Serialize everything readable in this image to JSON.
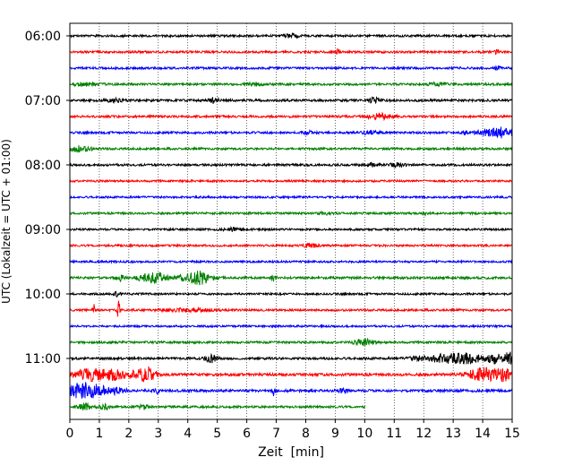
{
  "chart_data": {
    "type": "line",
    "title": "",
    "xlabel": "Zeit  [min]",
    "ylabel": "UTC (Lokalzeit = UTC + 01:00)",
    "xlim": [
      0,
      15
    ],
    "x_ticks": [
      0,
      1,
      2,
      3,
      4,
      5,
      6,
      7,
      8,
      9,
      10,
      11,
      12,
      13,
      14,
      15
    ],
    "y_ticks": [
      "06:00",
      "07:00",
      "08:00",
      "09:00",
      "10:00",
      "11:00"
    ],
    "trace_interval_min": 15,
    "first_trace": "06:00",
    "grid_x": true,
    "grid_style": "dotted",
    "color_cycle": [
      "#000000",
      "#ff0000",
      "#0000ff",
      "#008000"
    ],
    "traces": [
      {
        "start": "06:00",
        "color": "#000000",
        "amp": 1.2,
        "end": 15,
        "events": [
          [
            7.5,
            1.5,
            0.3
          ]
        ]
      },
      {
        "start": "06:15",
        "color": "#ff0000",
        "amp": 1.2,
        "end": 15,
        "events": [
          [
            9.1,
            3.5,
            0.05
          ],
          [
            14.5,
            2,
            0.1
          ]
        ]
      },
      {
        "start": "06:30",
        "color": "#0000ff",
        "amp": 1.2,
        "end": 15,
        "events": [
          [
            14.5,
            2,
            0.1
          ]
        ]
      },
      {
        "start": "06:45",
        "color": "#008000",
        "amp": 1.2,
        "end": 15,
        "events": [
          [
            0.5,
            1.8,
            0.4
          ],
          [
            6.3,
            1.5,
            0.3
          ],
          [
            12.5,
            2,
            0.3
          ]
        ]
      },
      {
        "start": "07:00",
        "color": "#000000",
        "amp": 1.3,
        "end": 15,
        "events": [
          [
            1.5,
            1.6,
            0.3
          ],
          [
            4.9,
            3,
            0.15
          ],
          [
            10.3,
            2.5,
            0.2
          ]
        ]
      },
      {
        "start": "07:15",
        "color": "#ff0000",
        "amp": 1.2,
        "end": 15,
        "events": [
          [
            10.5,
            3,
            0.4
          ]
        ]
      },
      {
        "start": "07:30",
        "color": "#0000ff",
        "amp": 1.2,
        "end": 15,
        "events": [
          [
            8.1,
            2,
            0.15
          ],
          [
            10.2,
            2.2,
            0.3
          ],
          [
            13.4,
            2,
            0.1
          ],
          [
            14.5,
            6,
            0.55
          ]
        ]
      },
      {
        "start": "07:45",
        "color": "#008000",
        "amp": 1.2,
        "end": 15,
        "events": [
          [
            0.2,
            3,
            0.5
          ]
        ]
      },
      {
        "start": "08:00",
        "color": "#000000",
        "amp": 1.2,
        "end": 15,
        "events": [
          [
            10.2,
            1.6,
            0.2
          ],
          [
            11.1,
            2.5,
            0.25
          ]
        ]
      },
      {
        "start": "08:15",
        "color": "#ff0000",
        "amp": 1.1,
        "end": 15,
        "events": []
      },
      {
        "start": "08:30",
        "color": "#0000ff",
        "amp": 1.1,
        "end": 15,
        "events": []
      },
      {
        "start": "08:45",
        "color": "#008000",
        "amp": 1.2,
        "end": 15,
        "events": [
          [
            8.6,
            1.5,
            0.2
          ],
          [
            12.0,
            2,
            0.1
          ]
        ]
      },
      {
        "start": "09:00",
        "color": "#000000",
        "amp": 1.1,
        "end": 15,
        "events": [
          [
            5.5,
            1.4,
            0.3
          ]
        ]
      },
      {
        "start": "09:15",
        "color": "#ff0000",
        "amp": 1.1,
        "end": 15,
        "events": [
          [
            8.2,
            2.5,
            0.25
          ]
        ]
      },
      {
        "start": "09:30",
        "color": "#0000ff",
        "amp": 1.1,
        "end": 15,
        "events": []
      },
      {
        "start": "09:45",
        "color": "#008000",
        "amp": 1.3,
        "end": 15,
        "events": [
          [
            1.7,
            3,
            0.15
          ],
          [
            2.4,
            2.5,
            0.2
          ],
          [
            2.9,
            6,
            0.35
          ],
          [
            4.0,
            3.5,
            0.3
          ],
          [
            4.4,
            6.5,
            0.4
          ],
          [
            6.9,
            3,
            0.1
          ]
        ]
      },
      {
        "start": "10:00",
        "color": "#000000",
        "amp": 1.1,
        "end": 15,
        "events": [
          [
            1.6,
            2.5,
            0.1
          ]
        ]
      },
      {
        "start": "10:15",
        "color": "#ff0000",
        "amp": 1.2,
        "end": 15,
        "events": [
          [
            0.8,
            12,
            0.04
          ],
          [
            1.65,
            13,
            0.04
          ],
          [
            4.0,
            1.8,
            0.8
          ]
        ]
      },
      {
        "start": "10:30",
        "color": "#0000ff",
        "amp": 1.1,
        "end": 15,
        "events": []
      },
      {
        "start": "10:45",
        "color": "#008000",
        "amp": 1.2,
        "end": 15,
        "events": [
          [
            10.0,
            3,
            0.35
          ]
        ]
      },
      {
        "start": "11:00",
        "color": "#000000",
        "amp": 1.3,
        "end": 15,
        "events": [
          [
            4.8,
            4,
            0.2
          ],
          [
            11.8,
            2,
            0.3
          ],
          [
            12.8,
            5,
            0.6
          ],
          [
            13.6,
            4.5,
            0.4
          ],
          [
            14.4,
            5,
            0.3
          ],
          [
            14.9,
            7,
            0.15
          ]
        ]
      },
      {
        "start": "11:15",
        "color": "#ff0000",
        "amp": 1.5,
        "end": 15,
        "events": [
          [
            0.7,
            6,
            0.5
          ],
          [
            1.5,
            5,
            0.4
          ],
          [
            2.3,
            5,
            0.3
          ],
          [
            2.7,
            7,
            0.25
          ],
          [
            14.0,
            7,
            0.5
          ],
          [
            14.7,
            6,
            0.3
          ]
        ]
      },
      {
        "start": "11:30",
        "color": "#0000ff",
        "amp": 1.4,
        "end": 15,
        "events": [
          [
            0.3,
            7,
            0.5
          ],
          [
            0.9,
            5,
            0.4
          ],
          [
            1.6,
            3,
            0.3
          ],
          [
            3.0,
            3,
            0.1
          ],
          [
            6.9,
            6,
            0.05
          ],
          [
            9.3,
            2.5,
            0.15
          ]
        ]
      },
      {
        "start": "11:45",
        "color": "#008000",
        "amp": 1.2,
        "end": 10,
        "events": [
          [
            0.5,
            3.5,
            0.2
          ],
          [
            1.2,
            3,
            0.2
          ],
          [
            2.5,
            2.5,
            0.2
          ]
        ]
      }
    ]
  }
}
